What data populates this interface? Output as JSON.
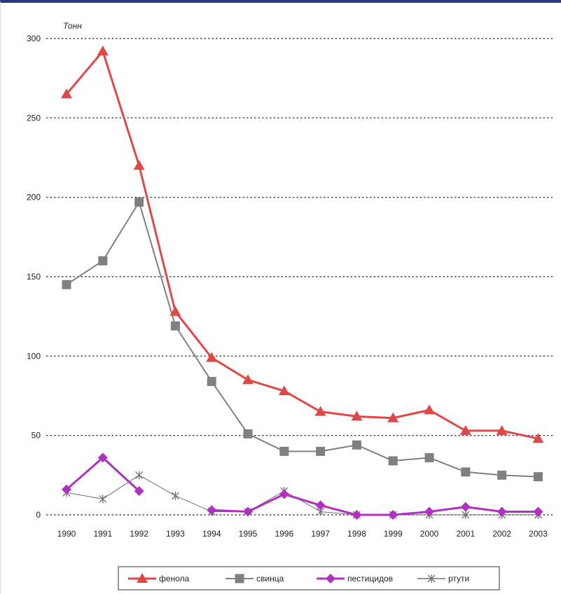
{
  "chart_data": {
    "type": "line",
    "unit_label": "Тонн",
    "categories": [
      "1990",
      "1991",
      "1992",
      "1993",
      "1994",
      "1995",
      "1996",
      "1997",
      "1998",
      "1999",
      "2000",
      "2001",
      "2002",
      "2003"
    ],
    "ylim": [
      0,
      300
    ],
    "yticks": [
      0,
      50,
      100,
      150,
      200,
      250,
      300
    ],
    "grid": true,
    "legend_position": "bottom",
    "series": [
      {
        "name": "фенола",
        "color": "#e04848",
        "marker": "triangle",
        "width": 3,
        "values": [
          265,
          292,
          220,
          128,
          99,
          85,
          78,
          65,
          62,
          61,
          66,
          53,
          53,
          48
        ]
      },
      {
        "name": "свинца",
        "color": "#808080",
        "marker": "square",
        "width": 2,
        "values": [
          145,
          160,
          197,
          119,
          84,
          51,
          40,
          40,
          44,
          34,
          36,
          27,
          25,
          24
        ]
      },
      {
        "name": "пестицидов",
        "color": "#b030c0",
        "marker": "diamond",
        "width": 3,
        "values": [
          16,
          36,
          15,
          null,
          3,
          2,
          13,
          6,
          0,
          0,
          2,
          5,
          2,
          2
        ]
      },
      {
        "name": "ртути",
        "color": "#707070",
        "marker": "cross",
        "width": 1,
        "values": [
          14,
          10,
          25,
          12,
          2,
          2,
          15,
          2,
          0,
          0,
          0,
          0,
          0,
          0
        ]
      }
    ]
  }
}
